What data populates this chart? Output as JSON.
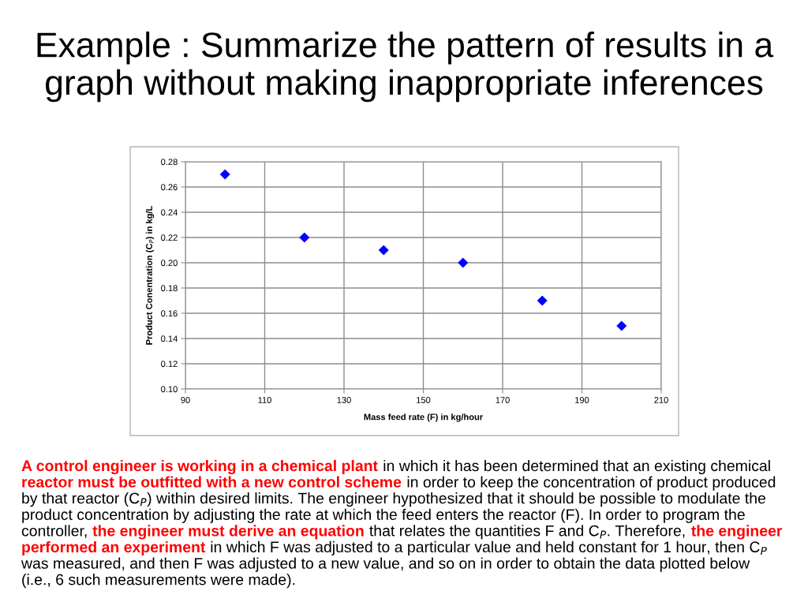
{
  "chart_data": {
    "type": "scatter",
    "title": "Example : Summarize the pattern of results in a graph without making inappropriate inferences",
    "xlabel": "Mass feed rate (F) in kg/hour",
    "ylabel": "Product Conentration (C$_{P}$) in kg/L",
    "x": [
      100,
      120,
      140,
      160,
      180,
      200
    ],
    "values": [
      0.27,
      0.22,
      0.21,
      0.2,
      0.17,
      0.15
    ],
    "color": "#0000ff",
    "marker": "diamond",
    "xlim": [
      90,
      210
    ],
    "ylim": [
      0.1,
      0.28
    ],
    "xticks": [
      90,
      110,
      130,
      150,
      170,
      190,
      210
    ],
    "yticks": [
      {
        "value": 0.1,
        "label": "0.10"
      },
      0.12,
      0.14,
      0.16,
      0.18,
      {
        "value": 0.2,
        "label": "0.20"
      },
      0.22,
      0.24,
      0.26,
      0.28
    ],
    "grid": true,
    "annotations": [
      "A control engineer is working in a chemical plant",
      "in which it has been determined that an existing chemical",
      "reactor must be outfitted with a new control scheme",
      "in order to keep the concentration of product produced",
      "by that reactor (C$_{P}$) within desired limits. The engineer hypothesized that it should be possible to modulate the",
      "product concentration by adjusting the rate at which the feed enters the reactor (F). In order to program the",
      "controller,",
      "the engineer must derive an equation",
      "that relates the quantities F and C$_{P}$. Therefore,",
      "the engineer",
      "performed an experiment",
      "in which F was adjusted to a particular value and held constant for 1 hour, then C$_{P}$",
      "was measured, and then F was adjusted to a new value, and so on in order to obtain the data plotted below",
      "(i.e., 6 such measurements were made)."
    ]
  }
}
